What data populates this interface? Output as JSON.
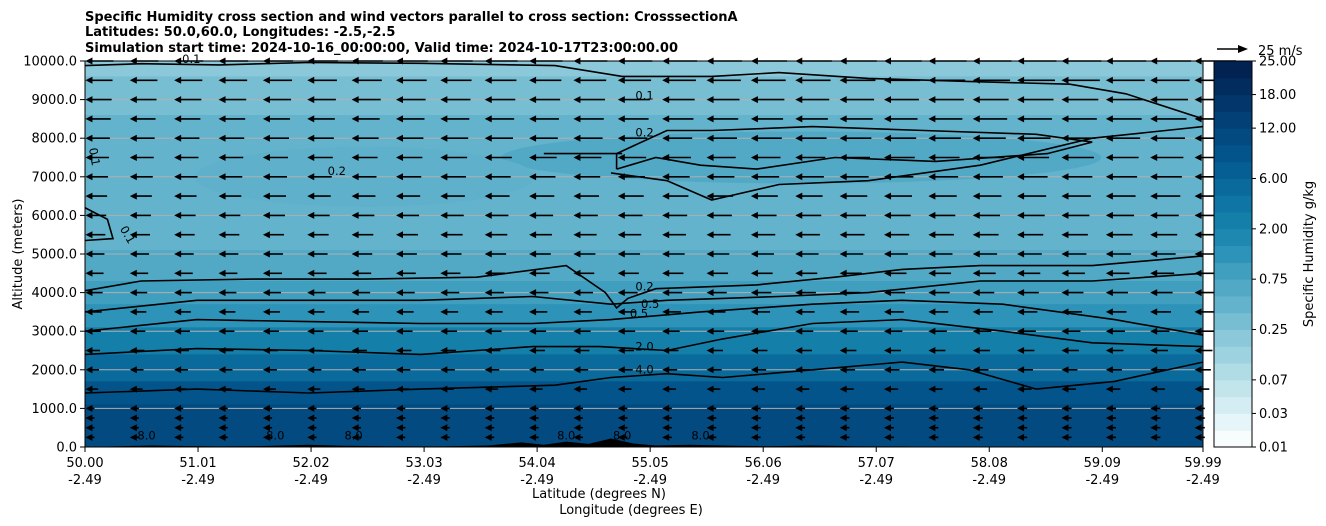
{
  "chart_data": {
    "type": "heatmap",
    "title_lines": [
      "Specific Humidity cross section and wind vectors parallel to cross section: CrosssectionA",
      "Latitudes: 50.0,60.0, Longitudes: -2.5,-2.5",
      "Simulation start time: 2024-10-16_00:00:00, Valid time: 2024-10-17T23:00:00.00"
    ],
    "xlabel": "Latitude (degrees N)",
    "xlabel2": "Longitude (degrees E)",
    "ylabel": "Altitude (meters)",
    "xlim": [
      50.0,
      59.99
    ],
    "ylim": [
      0,
      10000
    ],
    "x_ticks": [
      {
        "lat": "50.00",
        "lon": "-2.49",
        "value": 50.0
      },
      {
        "lat": "51.01",
        "lon": "-2.49",
        "value": 51.01
      },
      {
        "lat": "52.02",
        "lon": "-2.49",
        "value": 52.02
      },
      {
        "lat": "53.03",
        "lon": "-2.49",
        "value": 53.03
      },
      {
        "lat": "54.04",
        "lon": "-2.49",
        "value": 54.04
      },
      {
        "lat": "55.05",
        "lon": "-2.49",
        "value": 55.05
      },
      {
        "lat": "56.06",
        "lon": "-2.49",
        "value": 56.06
      },
      {
        "lat": "57.07",
        "lon": "-2.49",
        "value": 57.07
      },
      {
        "lat": "58.08",
        "lon": "-2.49",
        "value": 58.08
      },
      {
        "lat": "59.09",
        "lon": "-2.49",
        "value": 59.09
      },
      {
        "lat": "59.99",
        "lon": "-2.49",
        "value": 59.99
      }
    ],
    "y_ticks": [
      "0.0",
      "1000.0",
      "2000.0",
      "3000.0",
      "4000.0",
      "5000.0",
      "6000.0",
      "7000.0",
      "8000.0",
      "9000.0",
      "10000.0"
    ],
    "y_tick_values": [
      0,
      1000,
      2000,
      3000,
      4000,
      5000,
      6000,
      7000,
      8000,
      9000,
      10000
    ],
    "grid": "horizontal",
    "colorbar": {
      "label": "Specific Humidity g/kg",
      "levels": [
        0.01,
        0.02,
        0.03,
        0.05,
        0.07,
        0.1,
        0.15,
        0.25,
        0.4,
        0.5,
        0.75,
        1.0,
        1.5,
        2.0,
        3.0,
        4.0,
        6.0,
        8.0,
        10.0,
        12.0,
        15.0,
        18.0,
        20.0,
        25.0
      ],
      "tick_labels": [
        "0.01",
        "0.03",
        "0.07",
        "0.25",
        "0.75",
        "2.00",
        "6.00",
        "12.00",
        "18.00",
        "25.00"
      ],
      "colors": [
        "#f7fcfd",
        "#e5f5f9",
        "#d3edf3",
        "#c2e5ec",
        "#b0dce6",
        "#9dd2e0",
        "#8ac8da",
        "#77bed3",
        "#64b3cc",
        "#52a9c6",
        "#409ebf",
        "#2e93b8",
        "#1f88b0",
        "#1480aa",
        "#0f75a4",
        "#0a6a9c",
        "#055f94",
        "#03548b",
        "#034a80",
        "#034075",
        "#03366a",
        "#022c5e",
        "#022252"
      ]
    },
    "quiver_key": {
      "label": "25 m/s",
      "speed": 25
    },
    "wind_vectors": {
      "direction": "towards decreasing latitude",
      "x_columns": 26,
      "y_levels": [
        250,
        500,
        750,
        1000,
        1500,
        2000,
        2500,
        3000,
        3500,
        4000,
        4500,
        5000,
        5500,
        6000,
        6500,
        7000,
        7500,
        8000,
        8500,
        9000,
        9500,
        10000
      ]
    },
    "contour_labels": [
      "0.1",
      "0.1",
      "0.1",
      "0.1",
      "0.2",
      "0.2",
      "0.2",
      "0.5",
      "0.5",
      "2.0",
      "4.0",
      "8.0",
      "8.0",
      "8.0",
      "8.0",
      "8.0",
      "8.0"
    ]
  }
}
